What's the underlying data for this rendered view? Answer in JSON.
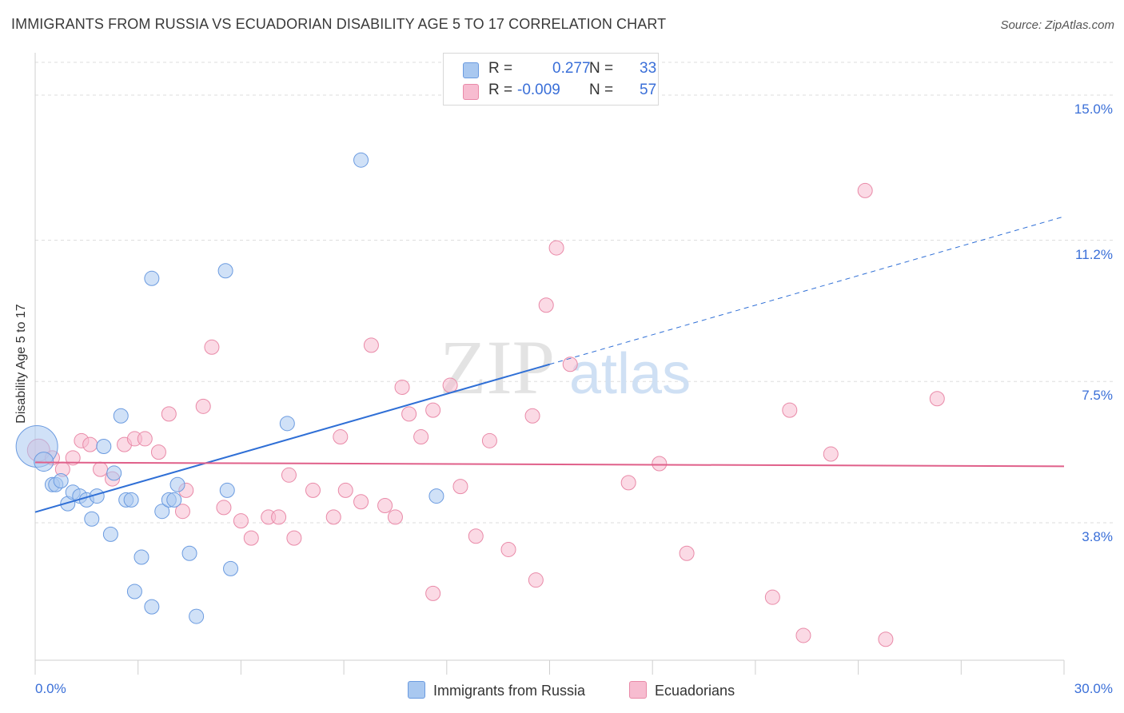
{
  "title": "IMMIGRANTS FROM RUSSIA VS ECUADORIAN DISABILITY AGE 5 TO 17 CORRELATION CHART",
  "source": "Source: ZipAtlas.com",
  "watermark": {
    "zip": "ZIP",
    "atlas": "atlas"
  },
  "legend": {
    "rows": [
      {
        "r_label": "R =",
        "r_value": "0.277",
        "n_label": "N =",
        "n_value": "33",
        "color": "#a9c8f0",
        "border": "#6b9be0"
      },
      {
        "r_label": "R =",
        "r_value": "-0.009",
        "n_label": "N =",
        "n_value": "57",
        "color": "#f7bcd0",
        "border": "#e98aa8"
      }
    ]
  },
  "bottom_legend": [
    {
      "label": "Immigrants from Russia",
      "color": "#a9c8f0",
      "border": "#6b9be0"
    },
    {
      "label": "Ecuadorians",
      "color": "#f7bcd0",
      "border": "#e98aa8"
    }
  ],
  "chart_data": {
    "type": "scatter",
    "xlabel": "",
    "ylabel": "Disability Age 5 to 17",
    "xlim": [
      0,
      30
    ],
    "ylim": [
      0.2,
      15.9
    ],
    "x_tick_labels": [
      "0.0%",
      "30.0%"
    ],
    "y_ticks": [
      {
        "value": 3.8,
        "label": "3.8%"
      },
      {
        "value": 7.5,
        "label": "7.5%"
      },
      {
        "value": 11.2,
        "label": "11.2%"
      },
      {
        "value": 15.0,
        "label": "15.0%"
      }
    ],
    "grid": "horizontal dashed",
    "series": [
      {
        "name": "Immigrants from Russia",
        "color": "#6b9be0",
        "fill": "#a9c8f0",
        "points": [
          [
            0.05,
            5.8,
            26
          ],
          [
            0.25,
            5.4,
            12
          ],
          [
            0.5,
            4.8,
            9
          ],
          [
            0.6,
            4.8,
            9
          ],
          [
            0.75,
            4.9,
            9
          ],
          [
            0.95,
            4.3,
            9
          ],
          [
            1.1,
            4.6,
            9
          ],
          [
            1.3,
            4.5,
            9
          ],
          [
            1.5,
            4.4,
            9
          ],
          [
            1.65,
            3.9,
            9
          ],
          [
            1.8,
            4.5,
            9
          ],
          [
            2.0,
            5.8,
            9
          ],
          [
            2.2,
            3.5,
            9
          ],
          [
            2.3,
            5.1,
            9
          ],
          [
            2.5,
            6.6,
            9
          ],
          [
            2.65,
            4.4,
            9
          ],
          [
            2.8,
            4.4,
            9
          ],
          [
            2.9,
            2.0,
            9
          ],
          [
            3.1,
            2.9,
            9
          ],
          [
            3.4,
            1.6,
            9
          ],
          [
            3.4,
            10.2,
            9
          ],
          [
            3.7,
            4.1,
            9
          ],
          [
            3.9,
            4.4,
            9
          ],
          [
            4.05,
            4.4,
            9
          ],
          [
            4.15,
            4.8,
            9
          ],
          [
            4.5,
            3.0,
            9
          ],
          [
            4.7,
            1.35,
            9
          ],
          [
            5.6,
            4.65,
            9
          ],
          [
            5.7,
            2.6,
            9
          ],
          [
            5.55,
            10.4,
            9
          ],
          [
            7.35,
            6.4,
            9
          ],
          [
            9.5,
            13.3,
            9
          ],
          [
            11.7,
            4.5,
            9
          ]
        ],
        "trend": {
          "x0": 0.0,
          "y0": 4.08,
          "x1": 15.0,
          "y1": 7.95,
          "dash_to_x": 30.0,
          "dash_to_y": 11.82
        }
      },
      {
        "name": "Ecuadorians",
        "color": "#e98aa8",
        "fill": "#f7bcd0",
        "points": [
          [
            0.1,
            5.7,
            14
          ],
          [
            0.5,
            5.5,
            9
          ],
          [
            0.8,
            5.2,
            9
          ],
          [
            1.1,
            5.5,
            9
          ],
          [
            1.35,
            5.95,
            9
          ],
          [
            1.6,
            5.85,
            9
          ],
          [
            1.9,
            5.2,
            9
          ],
          [
            2.25,
            4.95,
            9
          ],
          [
            2.6,
            5.85,
            9
          ],
          [
            2.9,
            6.0,
            9
          ],
          [
            3.2,
            6.0,
            9
          ],
          [
            3.6,
            5.65,
            9
          ],
          [
            3.9,
            6.65,
            9
          ],
          [
            4.3,
            4.1,
            9
          ],
          [
            4.4,
            4.65,
            9
          ],
          [
            4.9,
            6.85,
            9
          ],
          [
            5.15,
            8.4,
            9
          ],
          [
            5.5,
            4.2,
            9
          ],
          [
            6.0,
            3.85,
            9
          ],
          [
            6.3,
            3.4,
            9
          ],
          [
            6.8,
            3.95,
            9
          ],
          [
            7.1,
            3.95,
            9
          ],
          [
            7.4,
            5.05,
            9
          ],
          [
            7.55,
            3.4,
            9
          ],
          [
            8.1,
            4.65,
            9
          ],
          [
            8.7,
            3.95,
            9
          ],
          [
            8.9,
            6.05,
            9
          ],
          [
            9.05,
            4.65,
            9
          ],
          [
            9.5,
            4.35,
            9
          ],
          [
            9.8,
            8.45,
            9
          ],
          [
            10.2,
            4.25,
            9
          ],
          [
            10.5,
            3.95,
            9
          ],
          [
            10.7,
            7.35,
            9
          ],
          [
            10.9,
            6.65,
            9
          ],
          [
            11.25,
            6.05,
            9
          ],
          [
            11.6,
            6.75,
            9
          ],
          [
            11.6,
            1.95,
            9
          ],
          [
            12.1,
            7.4,
            9
          ],
          [
            12.4,
            4.75,
            9
          ],
          [
            12.85,
            3.45,
            9
          ],
          [
            13.25,
            5.95,
            9
          ],
          [
            13.8,
            3.1,
            9
          ],
          [
            14.5,
            6.6,
            9
          ],
          [
            14.6,
            2.3,
            9
          ],
          [
            14.9,
            9.5,
            9
          ],
          [
            15.2,
            11.0,
            9
          ],
          [
            15.6,
            7.95,
            9
          ],
          [
            17.3,
            4.85,
            9
          ],
          [
            18.2,
            5.35,
            9
          ],
          [
            19.0,
            3.0,
            9
          ],
          [
            21.5,
            1.85,
            9
          ],
          [
            22.0,
            6.75,
            9
          ],
          [
            22.4,
            0.85,
            9
          ],
          [
            23.2,
            5.6,
            9
          ],
          [
            24.2,
            12.5,
            9
          ],
          [
            24.8,
            0.75,
            9
          ],
          [
            26.3,
            7.05,
            9
          ]
        ],
        "trend": {
          "x0": 0.0,
          "y0": 5.38,
          "x1": 30.0,
          "y1": 5.28
        }
      }
    ]
  }
}
